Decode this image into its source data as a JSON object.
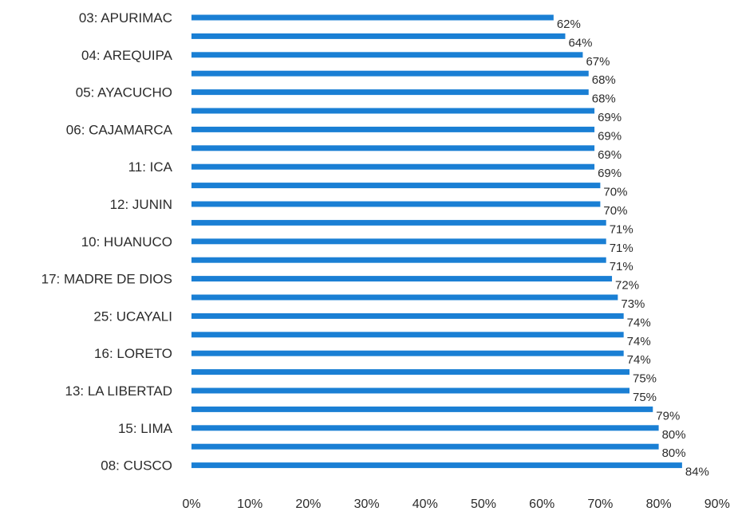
{
  "chart_data": {
    "type": "bar",
    "orientation": "horizontal",
    "categories": [
      "03: APURIMAC",
      "",
      "04: AREQUIPA",
      "",
      "05: AYACUCHO",
      "",
      "06: CAJAMARCA",
      "",
      "11: ICA",
      "",
      "12: JUNIN",
      "",
      "10: HUANUCO",
      "",
      "17: MADRE DE DIOS",
      "",
      "25: UCAYALI",
      "",
      "16: LORETO",
      "",
      "13: LA LIBERTAD",
      "",
      "15: LIMA",
      "",
      "08: CUSCO"
    ],
    "values": [
      62,
      64,
      67,
      68,
      68,
      69,
      69,
      69,
      69,
      70,
      70,
      71,
      71,
      71,
      72,
      73,
      74,
      74,
      74,
      75,
      75,
      79,
      80,
      80,
      84
    ],
    "data_labels": [
      "62%",
      "64%",
      "67%",
      "68%",
      "68%",
      "69%",
      "69%",
      "69%",
      "69%",
      "70%",
      "70%",
      "71%",
      "71%",
      "71%",
      "72%",
      "73%",
      "74%",
      "74%",
      "74%",
      "75%",
      "75%",
      "79%",
      "80%",
      "80%",
      "84%"
    ],
    "x_ticks": [
      "0%",
      "10%",
      "20%",
      "30%",
      "40%",
      "50%",
      "60%",
      "70%",
      "80%",
      "90%"
    ],
    "xlim": [
      0,
      90
    ],
    "bar_color": "#1a7fd4",
    "grid": false,
    "legend": "none",
    "title": "",
    "xlabel": "",
    "ylabel": ""
  }
}
